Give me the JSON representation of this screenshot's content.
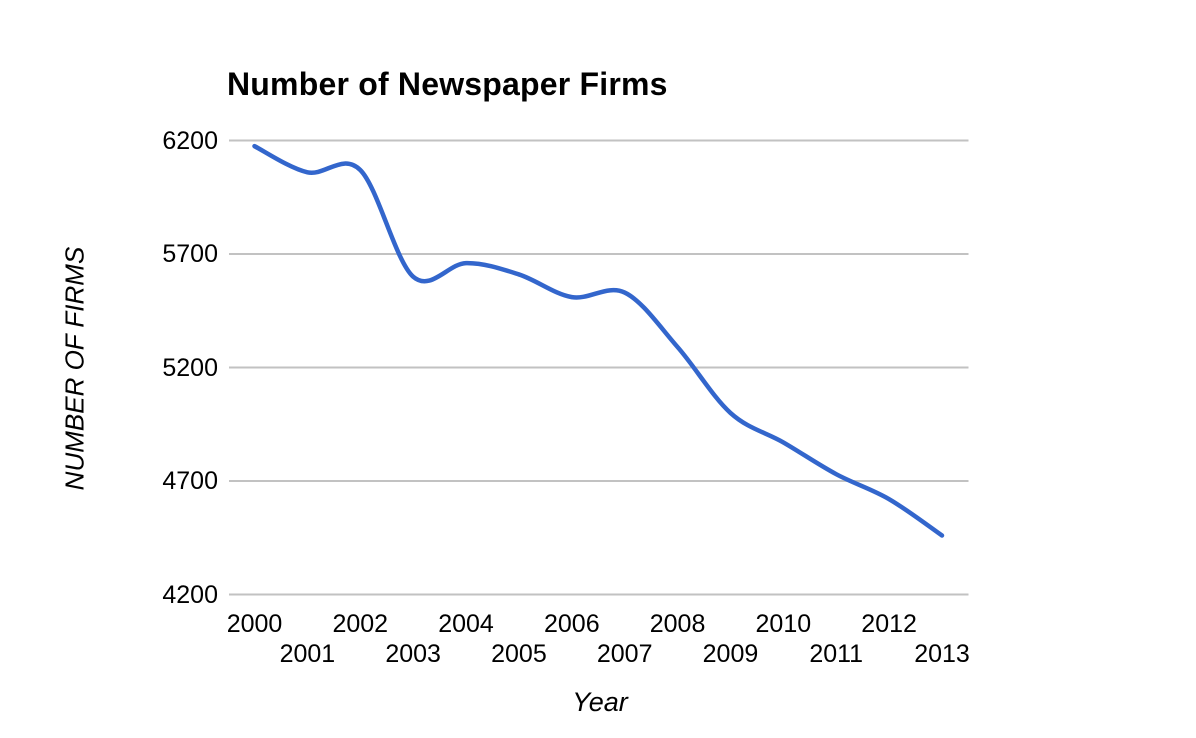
{
  "chart_data": {
    "type": "line",
    "title": "Number of Newspaper Firms",
    "xlabel": "Year",
    "ylabel": "NUMBER OF FIRMS",
    "x": [
      2000,
      2001,
      2002,
      2003,
      2004,
      2005,
      2006,
      2007,
      2008,
      2009,
      2010,
      2011,
      2012,
      2013
    ],
    "values": [
      6175,
      6060,
      6070,
      5600,
      5660,
      5610,
      5510,
      5530,
      5290,
      5000,
      4870,
      4730,
      4620,
      4460
    ],
    "y_ticks": [
      6200,
      5700,
      5200,
      4700,
      4200
    ],
    "x_ticks": [
      2000,
      2001,
      2002,
      2003,
      2004,
      2005,
      2006,
      2007,
      2008,
      2009,
      2010,
      2011,
      2012,
      2013
    ],
    "ylim": [
      4200,
      6200
    ],
    "xlim": [
      2000,
      2013
    ],
    "grid": true,
    "legend": "none",
    "smooth": true,
    "line_color": "#3366CC",
    "gridline_color": "#C2C2C2",
    "text_color": "#000000",
    "background_color": "#FFFFFF"
  }
}
